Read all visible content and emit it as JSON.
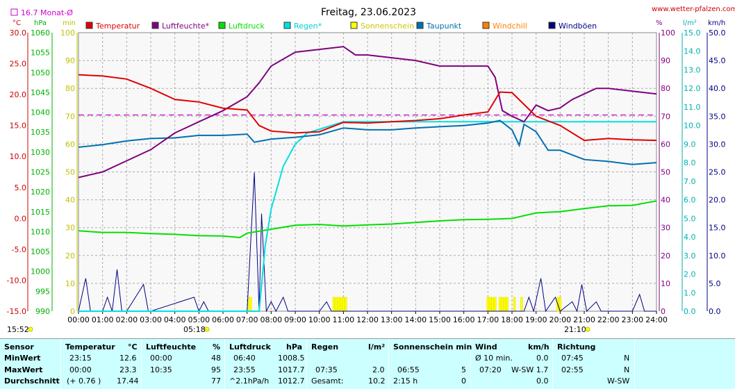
{
  "header": {
    "title": "Freitag, 23.06.2023",
    "site": "www.wetter-pfalzen.com",
    "monthly_avg_label": "16.7 Monat-Ø",
    "time_label": "15:52"
  },
  "units": {
    "celsius": "°C",
    "hpa": "hPa",
    "min": "min",
    "percent": "%",
    "lm2": "l/m²",
    "kmh": "km/h"
  },
  "legend": [
    {
      "label": "Temperatur",
      "color": "#e00000"
    },
    {
      "label": "Luftfeuchte*",
      "color": "#800080"
    },
    {
      "label": "Luftdruck",
      "color": "#00e000"
    },
    {
      "label": "Regen*",
      "color": "#00e0e0"
    },
    {
      "label": "Sonnenschein",
      "color": "#ffff00"
    },
    {
      "label": "Taupunkt",
      "color": "#0070b0"
    },
    {
      "label": "Windchill",
      "color": "#ff8000"
    },
    {
      "label": "Windböen",
      "color": "#000080"
    }
  ],
  "axes": {
    "temp": [
      "30.0",
      "25.0",
      "20.0",
      "15.0",
      "10.0",
      "5.0",
      "0.0",
      "-5.0",
      "-10.0",
      "-15.0"
    ],
    "hpa": [
      "1060",
      "1055",
      "1050",
      "1045",
      "1040",
      "1035",
      "1030",
      "1025",
      "1020",
      "1015",
      "1010",
      "1005",
      "1000",
      "995",
      "990"
    ],
    "min": [
      "100",
      "90",
      "80",
      "70",
      "60",
      "50",
      "40",
      "30",
      "20",
      "10",
      "0"
    ],
    "percent": [
      "100",
      "90",
      "80",
      "70",
      "60",
      "50",
      "40",
      "30",
      "20",
      "10",
      "0"
    ],
    "lm2": [
      "15.0",
      "14.0",
      "13.0",
      "12.0",
      "11.0",
      "10.0",
      "9.0",
      "8.0",
      "7.0",
      "6.0",
      "5.0",
      "4.0",
      "3.0",
      "2.0",
      "1.0",
      "0.0"
    ],
    "kmh": [
      "50.0",
      "45.0",
      "40.0",
      "35.0",
      "30.0",
      "25.0",
      "20.0",
      "15.0",
      "10.0",
      "5.0",
      "0.0"
    ],
    "x": [
      "00:00",
      "01:00",
      "02:00",
      "03:00",
      "04:00",
      "05:00",
      "06:00",
      "07:00",
      "08:00",
      "09:00",
      "10:00",
      "11:00",
      "12:00",
      "13:00",
      "14:00",
      "15:00",
      "16:00",
      "17:00",
      "18:00",
      "19:00",
      "20:00",
      "21:00",
      "22:00",
      "23:00",
      "24:00"
    ],
    "sunrise": "05:18",
    "sunset": "21:10"
  },
  "chart_data": {
    "type": "line",
    "title": "Freitag, 23.06.2023",
    "x_unit": "hours",
    "series": [
      {
        "name": "Temperatur",
        "axis": "temp",
        "color": "#e00000",
        "points": [
          [
            0,
            23.2
          ],
          [
            1,
            23.0
          ],
          [
            2,
            22.5
          ],
          [
            3,
            21.0
          ],
          [
            4,
            19.2
          ],
          [
            5,
            18.8
          ],
          [
            6,
            17.8
          ],
          [
            7,
            17.5
          ],
          [
            7.5,
            15.0
          ],
          [
            8,
            14.1
          ],
          [
            9,
            13.8
          ],
          [
            10,
            14.0
          ],
          [
            11,
            15.5
          ],
          [
            12,
            15.4
          ],
          [
            13,
            15.6
          ],
          [
            14,
            15.8
          ],
          [
            15,
            16.1
          ],
          [
            16,
            16.7
          ],
          [
            17,
            17.2
          ],
          [
            17.5,
            20.4
          ],
          [
            18,
            20.3
          ],
          [
            19,
            16.5
          ],
          [
            20,
            15.0
          ],
          [
            21,
            12.6
          ],
          [
            22,
            12.9
          ],
          [
            23,
            12.7
          ],
          [
            24,
            12.6
          ]
        ]
      },
      {
        "name": "Luftfeuchte*",
        "axis": "percent",
        "color": "#800080",
        "points": [
          [
            0,
            48
          ],
          [
            1,
            50
          ],
          [
            2,
            54
          ],
          [
            3,
            58
          ],
          [
            4,
            64
          ],
          [
            5,
            68
          ],
          [
            6,
            72
          ],
          [
            7,
            77
          ],
          [
            7.5,
            82
          ],
          [
            8,
            88
          ],
          [
            9,
            93
          ],
          [
            10,
            94
          ],
          [
            11,
            95
          ],
          [
            11.5,
            92
          ],
          [
            12,
            92
          ],
          [
            13,
            91
          ],
          [
            14,
            90
          ],
          [
            15,
            88
          ],
          [
            16,
            88
          ],
          [
            17,
            88
          ],
          [
            17.3,
            84
          ],
          [
            17.6,
            72
          ],
          [
            18,
            70
          ],
          [
            18.5,
            68
          ],
          [
            19,
            74
          ],
          [
            19.5,
            72
          ],
          [
            20,
            73
          ],
          [
            20.5,
            76
          ],
          [
            21,
            78
          ],
          [
            21.5,
            80
          ],
          [
            22,
            80
          ],
          [
            23,
            79
          ],
          [
            24,
            78
          ]
        ]
      },
      {
        "name": "Luftdruck",
        "axis": "hpa",
        "color": "#00e000",
        "points": [
          [
            0,
            1010.2
          ],
          [
            1,
            1009.8
          ],
          [
            2,
            1009.8
          ],
          [
            3,
            1009.5
          ],
          [
            4,
            1009.3
          ],
          [
            5,
            1009.0
          ],
          [
            6,
            1008.9
          ],
          [
            6.7,
            1008.5
          ],
          [
            7,
            1009.6
          ],
          [
            8,
            1010.6
          ],
          [
            9,
            1011.6
          ],
          [
            10,
            1011.8
          ],
          [
            11,
            1011.4
          ],
          [
            12,
            1011.7
          ],
          [
            13,
            1011.9
          ],
          [
            14,
            1012.3
          ],
          [
            15,
            1012.7
          ],
          [
            16,
            1013.0
          ],
          [
            17,
            1013.1
          ],
          [
            18,
            1013.3
          ],
          [
            19,
            1014.7
          ],
          [
            20,
            1015.0
          ],
          [
            21,
            1015.8
          ],
          [
            22,
            1016.5
          ],
          [
            23,
            1016.6
          ],
          [
            24,
            1017.7
          ]
        ]
      },
      {
        "name": "Regen*",
        "axis": "lm2",
        "color": "#00e0e0",
        "points": [
          [
            0,
            0
          ],
          [
            7.5,
            0
          ],
          [
            7.75,
            3.5
          ],
          [
            8,
            5.5
          ],
          [
            8.5,
            7.8
          ],
          [
            9,
            9.0
          ],
          [
            9.5,
            9.6
          ],
          [
            10,
            9.8
          ],
          [
            10.5,
            10.0
          ],
          [
            11,
            10.2
          ],
          [
            24,
            10.2
          ]
        ]
      },
      {
        "name": "Taupunkt",
        "axis": "temp",
        "color": "#0070b0",
        "points": [
          [
            0,
            11.5
          ],
          [
            1,
            11.9
          ],
          [
            2,
            12.5
          ],
          [
            3,
            12.9
          ],
          [
            4,
            13.0
          ],
          [
            5,
            13.4
          ],
          [
            6,
            13.4
          ],
          [
            7,
            13.6
          ],
          [
            7.3,
            12.3
          ],
          [
            8,
            12.8
          ],
          [
            9,
            13.1
          ],
          [
            10,
            13.5
          ],
          [
            11,
            14.6
          ],
          [
            12,
            14.3
          ],
          [
            13,
            14.3
          ],
          [
            14,
            14.6
          ],
          [
            15,
            14.8
          ],
          [
            16,
            15.0
          ],
          [
            17,
            15.4
          ],
          [
            17.5,
            15.8
          ],
          [
            18,
            14.3
          ],
          [
            18.3,
            11.8
          ],
          [
            18.5,
            15.2
          ],
          [
            19,
            14.0
          ],
          [
            19.5,
            11.0
          ],
          [
            20,
            11.0
          ],
          [
            21,
            9.5
          ],
          [
            22,
            9.2
          ],
          [
            23,
            8.7
          ],
          [
            24,
            9.0
          ]
        ]
      },
      {
        "name": "Windböen",
        "axis": "kmh",
        "color": "#000080",
        "points": [
          [
            0,
            0
          ],
          [
            0.3,
            5.9
          ],
          [
            0.5,
            0
          ],
          [
            1,
            0
          ],
          [
            1.2,
            2.5
          ],
          [
            1.4,
            0
          ],
          [
            1.6,
            7.5
          ],
          [
            1.8,
            0
          ],
          [
            2,
            0
          ],
          [
            2.7,
            4.8
          ],
          [
            2.9,
            0
          ],
          [
            3,
            0
          ],
          [
            4.8,
            2.5
          ],
          [
            5,
            0
          ],
          [
            5.2,
            1.7
          ],
          [
            5.4,
            0
          ],
          [
            7,
            0
          ],
          [
            7.3,
            24.9
          ],
          [
            7.5,
            0
          ],
          [
            7.6,
            17.5
          ],
          [
            7.8,
            0
          ],
          [
            8,
            1.7
          ],
          [
            8.2,
            0
          ],
          [
            8.5,
            2.5
          ],
          [
            8.7,
            0
          ],
          [
            10,
            0
          ],
          [
            10.3,
            1.7
          ],
          [
            10.5,
            0
          ],
          [
            17,
            0
          ],
          [
            18.5,
            0
          ],
          [
            18.7,
            2.5
          ],
          [
            18.9,
            0
          ],
          [
            19.2,
            5.9
          ],
          [
            19.4,
            0
          ],
          [
            19.8,
            2.5
          ],
          [
            20,
            0
          ],
          [
            20.5,
            1.7
          ],
          [
            20.7,
            0
          ],
          [
            20.9,
            4.8
          ],
          [
            21.1,
            0
          ],
          [
            21.5,
            1.7
          ],
          [
            21.7,
            0
          ],
          [
            23,
            0
          ],
          [
            23.3,
            3.0
          ],
          [
            23.5,
            0
          ],
          [
            24,
            0
          ]
        ]
      }
    ],
    "monthly_avg": {
      "value": 16.7,
      "axis": "temp",
      "color": "#cc00cc"
    },
    "sunshine_minutes": [
      [
        7.1,
        5
      ],
      [
        7.15,
        5
      ],
      [
        10.6,
        5
      ],
      [
        10.7,
        5
      ],
      [
        10.8,
        5
      ],
      [
        10.9,
        5
      ],
      [
        11.0,
        5
      ],
      [
        11.1,
        5
      ],
      [
        17.0,
        5
      ],
      [
        17.1,
        5
      ],
      [
        17.2,
        5
      ],
      [
        17.3,
        5
      ],
      [
        17.5,
        5
      ],
      [
        17.6,
        5
      ],
      [
        17.7,
        5
      ],
      [
        17.8,
        5
      ],
      [
        18.1,
        5
      ],
      [
        18.4,
        5
      ],
      [
        19.9,
        5
      ],
      [
        20.0,
        5
      ]
    ]
  },
  "stats": {
    "headers": {
      "sensor": "Sensor",
      "temp": "Temperatur",
      "temp_unit": "°C",
      "hum": "Luftfeuchte",
      "hum_unit": "%",
      "press": "Luftdruck",
      "press_unit": "hPa",
      "rain": "Regen",
      "rain_unit": "l/m²",
      "sun": "Sonnenschein min",
      "wind": "Wind",
      "wind_unit": "km/h",
      "dir": "Richtung"
    },
    "rows": {
      "min": {
        "label": "MinWert",
        "temp_t": "23:15",
        "temp_v": "12.6",
        "hum_t": "00:00",
        "hum_v": "48",
        "press_t": "06:40",
        "press_v": "1008.5",
        "rain_t": "",
        "rain_v": "",
        "sun_t": "",
        "sun_v": "",
        "wind_t": "Ø 10 min.",
        "wind_v": "0.0",
        "dir_t": "07:45",
        "dir_v": "N"
      },
      "max": {
        "label": "MaxWert",
        "temp_t": "00:00",
        "temp_v": "23.3",
        "hum_t": "10:35",
        "hum_v": "95",
        "press_t": "23:55",
        "press_v": "1017.7",
        "rain_t": "07:35",
        "rain_v": "2.0",
        "sun_t": "06:55",
        "sun_v": "5",
        "wind_t": "07:20",
        "wind_v": "W-SW 1.7",
        "dir_t": "02:55",
        "dir_v": "N"
      },
      "avg": {
        "label": "Durchschnitt",
        "temp_t": "(+ 0.76 )",
        "temp_v": "17.44",
        "hum_t": "",
        "hum_v": "77",
        "press_t": "^2.1hPa/h",
        "press_v": "1012.7",
        "rain_t": "Gesamt:",
        "rain_v": "10.2",
        "sun_t": "2:15 h",
        "sun_v": "0",
        "wind_t": "",
        "wind_v": "0.0",
        "dir_t": "",
        "dir_v": "W-SW"
      }
    }
  }
}
